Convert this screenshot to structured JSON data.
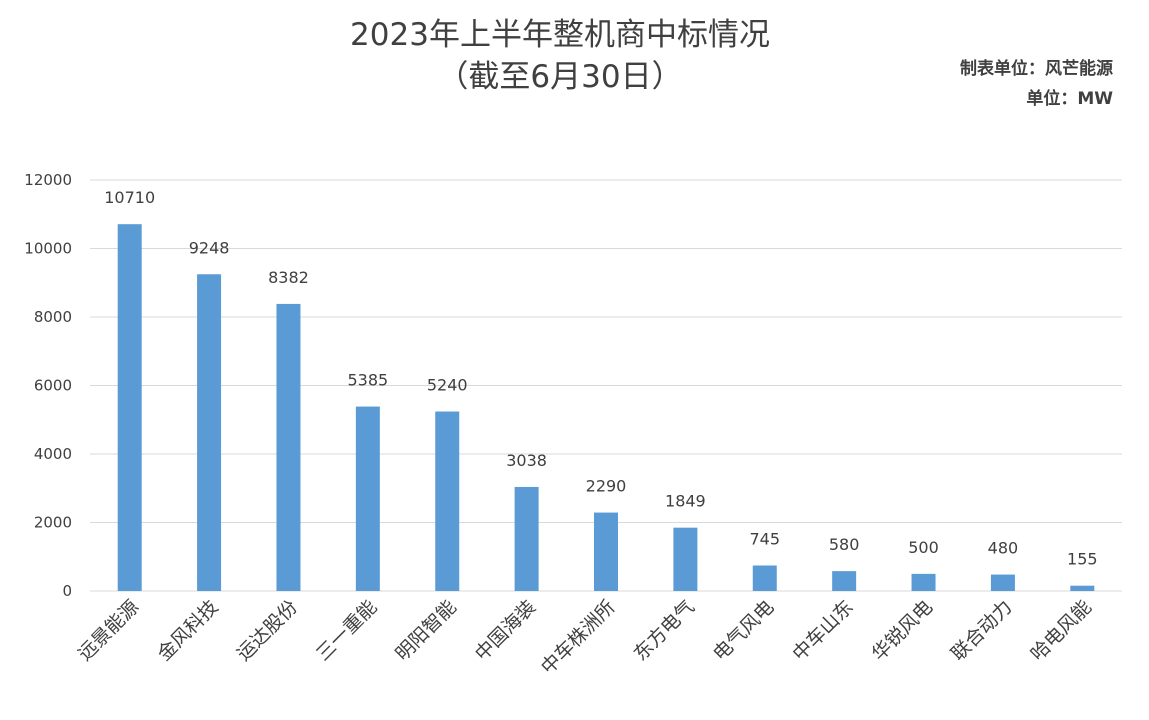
{
  "chart_data": {
    "type": "bar",
    "title": "2023年上半年整机商中标情况",
    "subtitle": "（截至6月30日）",
    "source_label": "制表单位：风芒能源",
    "unit_label": "单位：MW",
    "categories": [
      "远景能源",
      "金风科技",
      "运达股份",
      "三一重能",
      "明阳智能",
      "中国海装",
      "中车株洲所",
      "东方电气",
      "电气风电",
      "中车山东",
      "华锐风电",
      "联合动力",
      "哈电风能"
    ],
    "values": [
      10710,
      9248,
      8382,
      5385,
      5240,
      3038,
      2290,
      1849,
      745,
      580,
      500,
      480,
      155
    ],
    "yticks": [
      0,
      2000,
      4000,
      6000,
      8000,
      10000,
      12000
    ],
    "ylim": [
      0,
      12000
    ],
    "grid": true,
    "legend": "none",
    "bar_color": "#5b9bd5",
    "grid_color": "#d9d9d9"
  }
}
